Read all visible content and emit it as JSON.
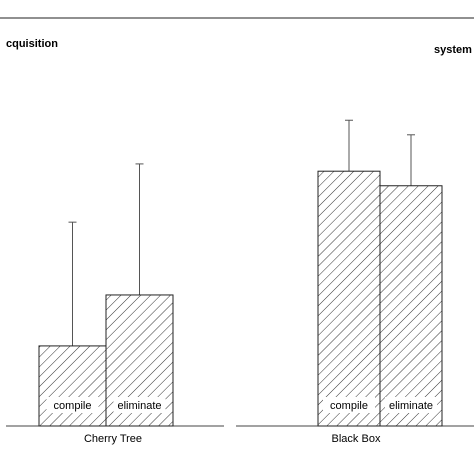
{
  "chart_data": {
    "type": "bar",
    "panels": [
      {
        "title": "cquisition",
        "xlabel": "Cherry Tree",
        "categories": [
          "compile",
          "eliminate"
        ],
        "values": [
          0.22,
          0.36
        ],
        "error_upper": [
          0.56,
          0.72
        ]
      },
      {
        "title": "system",
        "xlabel": "Black Box",
        "categories": [
          "compile",
          "eliminate"
        ],
        "values": [
          0.7,
          0.66
        ],
        "error_upper": [
          0.84,
          0.8
        ]
      }
    ],
    "ylim": [
      0,
      1
    ],
    "grid": false,
    "bar_fill": "diagonal-hatch",
    "colors": {
      "line": "#000000",
      "background": "#ffffff"
    }
  }
}
